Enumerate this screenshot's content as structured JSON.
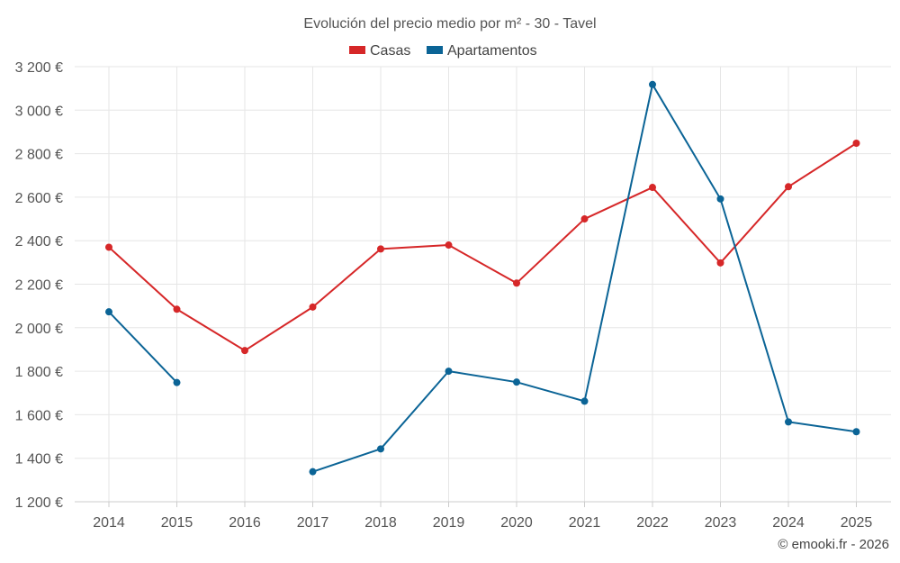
{
  "chart_data": {
    "type": "line",
    "title": "Evolución del precio medio por m² - 30 - Tavel",
    "categories": [
      "2014",
      "2015",
      "2016",
      "2017",
      "2018",
      "2019",
      "2020",
      "2021",
      "2022",
      "2023",
      "2024",
      "2025"
    ],
    "series": [
      {
        "name": "Casas",
        "color": "#d62728",
        "values": [
          2370,
          2085,
          1895,
          2095,
          2362,
          2380,
          2205,
          2500,
          2645,
          2298,
          2648,
          2848
        ]
      },
      {
        "name": "Apartamentos",
        "color": "#0b6496",
        "values": [
          2073,
          1748,
          null,
          1338,
          1443,
          1800,
          1750,
          1662,
          3118,
          2592,
          1567,
          1522
        ]
      }
    ],
    "y_ticks": [
      "1 200 €",
      "1 400 €",
      "1 600 €",
      "1 800 €",
      "2 000 €",
      "2 200 €",
      "2 400 €",
      "2 600 €",
      "2 800 €",
      "3 000 €",
      "3 200 €"
    ],
    "ylim": [
      1200,
      3200
    ],
    "xlabel": "",
    "ylabel": "",
    "grid": true,
    "legend_position": "top-center"
  },
  "credit": "© emooki.fr - 2026"
}
